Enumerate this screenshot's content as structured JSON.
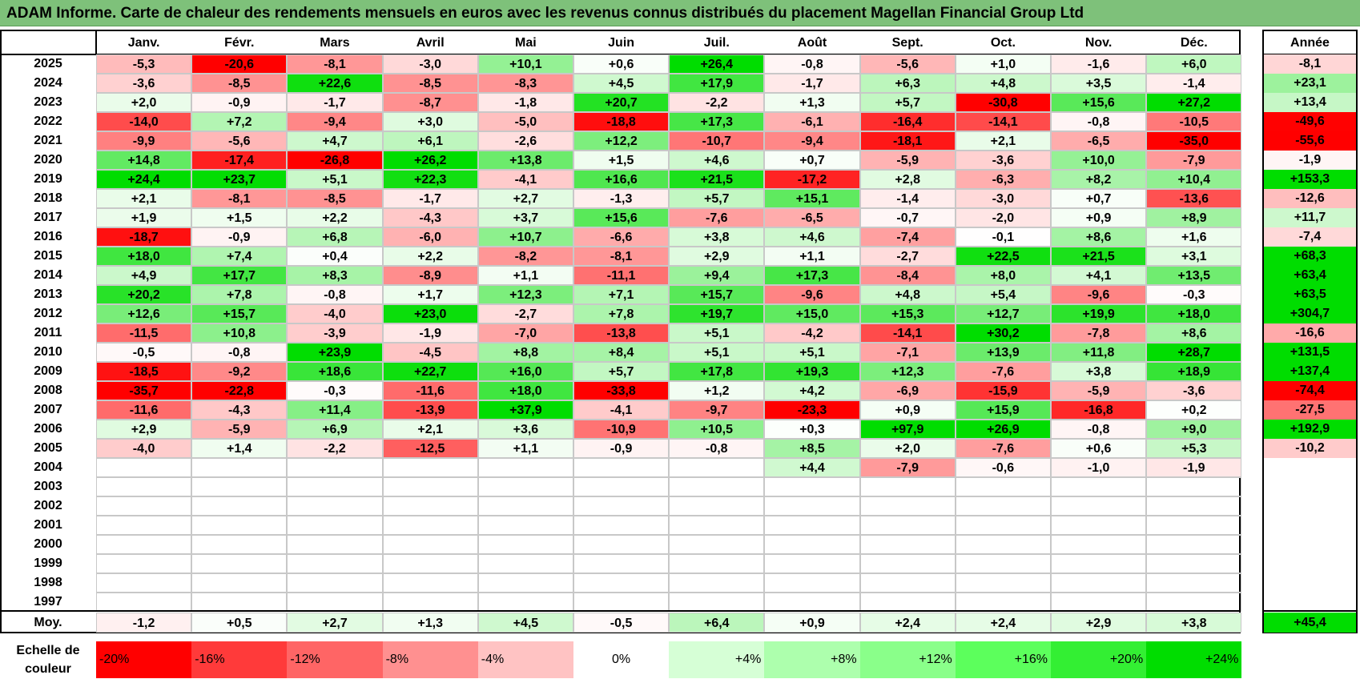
{
  "title": "ADAM Informe. Carte de chaleur des rendements mensuels en euros avec les revenus connus distribués du placement Magellan Financial Group Ltd",
  "chart_data": {
    "type": "heatmap",
    "months": [
      "Janv.",
      "Févr.",
      "Mars",
      "Avril",
      "Mai",
      "Juin",
      "Juil.",
      "Août",
      "Sept.",
      "Oct.",
      "Nov.",
      "Déc."
    ],
    "year_column_header": "Année",
    "rows": [
      {
        "year": "2025",
        "values": [
          -5.3,
          -20.6,
          -8.1,
          -3.0,
          10.1,
          0.6,
          26.4,
          -0.8,
          -5.6,
          1.0,
          -1.6,
          6.0
        ],
        "annual": -8.1
      },
      {
        "year": "2024",
        "values": [
          -3.6,
          -8.5,
          22.6,
          -8.5,
          -8.3,
          4.5,
          17.9,
          -1.7,
          6.3,
          4.8,
          3.5,
          -1.4
        ],
        "annual": 23.1
      },
      {
        "year": "2023",
        "values": [
          2.0,
          -0.9,
          -1.7,
          -8.7,
          -1.8,
          20.7,
          -2.2,
          1.3,
          5.7,
          -30.8,
          15.6,
          27.2
        ],
        "annual": 13.4
      },
      {
        "year": "2022",
        "values": [
          -14.0,
          7.2,
          -9.4,
          3.0,
          -5.0,
          -18.8,
          17.3,
          -6.1,
          -16.4,
          -14.1,
          -0.8,
          -10.5
        ],
        "annual": -49.6
      },
      {
        "year": "2021",
        "values": [
          -9.9,
          -5.6,
          4.7,
          6.1,
          -2.6,
          12.2,
          -10.7,
          -9.4,
          -18.1,
          2.1,
          -6.5,
          -35.0
        ],
        "annual": -55.6
      },
      {
        "year": "2020",
        "values": [
          14.8,
          -17.4,
          -26.8,
          26.2,
          13.8,
          1.5,
          4.6,
          0.7,
          -5.9,
          -3.6,
          10.0,
          -7.9
        ],
        "annual": -1.9
      },
      {
        "year": "2019",
        "values": [
          24.4,
          23.7,
          5.1,
          22.3,
          -4.1,
          16.6,
          21.5,
          -17.2,
          2.8,
          -6.3,
          8.2,
          10.4
        ],
        "annual": 153.3
      },
      {
        "year": "2018",
        "values": [
          2.1,
          -8.1,
          -8.5,
          -1.7,
          2.7,
          -1.3,
          5.7,
          15.1,
          -1.4,
          -3.0,
          0.7,
          -13.6
        ],
        "annual": -12.6
      },
      {
        "year": "2017",
        "values": [
          1.9,
          1.5,
          2.2,
          -4.3,
          3.7,
          15.6,
          -7.6,
          -6.5,
          -0.7,
          -2.0,
          0.9,
          8.9
        ],
        "annual": 11.7
      },
      {
        "year": "2016",
        "values": [
          -18.7,
          -0.9,
          6.8,
          -6.0,
          10.7,
          -6.6,
          3.8,
          4.6,
          -7.4,
          -0.1,
          8.6,
          1.6
        ],
        "annual": -7.4
      },
      {
        "year": "2015",
        "values": [
          18.0,
          7.4,
          0.4,
          2.2,
          -8.2,
          -8.1,
          2.9,
          1.1,
          -2.7,
          22.5,
          21.5,
          3.1
        ],
        "annual": 68.3
      },
      {
        "year": "2014",
        "values": [
          4.9,
          17.7,
          8.3,
          -8.9,
          1.1,
          -11.1,
          9.4,
          17.3,
          -8.4,
          8.0,
          4.1,
          13.5
        ],
        "annual": 63.4
      },
      {
        "year": "2013",
        "values": [
          20.2,
          7.8,
          -0.8,
          1.7,
          12.3,
          7.1,
          15.7,
          -9.6,
          4.8,
          5.4,
          -9.6,
          -0.3
        ],
        "annual": 63.5
      },
      {
        "year": "2012",
        "values": [
          12.6,
          15.7,
          -4.0,
          23.0,
          -2.7,
          7.8,
          19.7,
          15.0,
          15.3,
          12.7,
          19.9,
          18.0
        ],
        "annual": 304.7
      },
      {
        "year": "2011",
        "values": [
          -11.5,
          10.8,
          -3.9,
          -1.9,
          -7.0,
          -13.8,
          5.1,
          -4.2,
          -14.1,
          30.2,
          -7.8,
          8.6
        ],
        "annual": -16.6
      },
      {
        "year": "2010",
        "values": [
          -0.5,
          -0.8,
          23.9,
          -4.5,
          8.8,
          8.4,
          5.1,
          5.1,
          -7.1,
          13.9,
          11.8,
          28.7
        ],
        "annual": 131.5
      },
      {
        "year": "2009",
        "values": [
          -18.5,
          -9.2,
          18.6,
          22.7,
          16.0,
          5.7,
          17.8,
          19.3,
          12.3,
          -7.6,
          3.8,
          18.9
        ],
        "annual": 137.4
      },
      {
        "year": "2008",
        "values": [
          -35.7,
          -22.8,
          -0.3,
          -11.6,
          18.0,
          -33.8,
          1.2,
          4.2,
          -6.9,
          -15.9,
          -5.9,
          -3.6
        ],
        "annual": -74.4
      },
      {
        "year": "2007",
        "values": [
          -11.6,
          -4.3,
          11.4,
          -13.9,
          37.9,
          -4.1,
          -9.7,
          -23.3,
          0.9,
          15.9,
          -16.8,
          0.2
        ],
        "annual": -27.5
      },
      {
        "year": "2006",
        "values": [
          2.9,
          -5.9,
          6.9,
          2.1,
          3.6,
          -10.9,
          10.5,
          0.3,
          97.9,
          26.9,
          -0.8,
          9.0
        ],
        "annual": 192.9
      },
      {
        "year": "2005",
        "values": [
          -4.0,
          1.4,
          -2.2,
          -12.5,
          1.1,
          -0.9,
          -0.8,
          8.5,
          2.0,
          -7.6,
          0.6,
          5.3
        ],
        "annual": -10.2
      },
      {
        "year": "2004",
        "values": [
          null,
          null,
          null,
          null,
          null,
          null,
          null,
          4.4,
          -7.9,
          -0.6,
          -1.0,
          -1.9
        ],
        "annual": null
      },
      {
        "year": "2003",
        "values": [
          null,
          null,
          null,
          null,
          null,
          null,
          null,
          null,
          null,
          null,
          null,
          null
        ],
        "annual": null
      },
      {
        "year": "2002",
        "values": [
          null,
          null,
          null,
          null,
          null,
          null,
          null,
          null,
          null,
          null,
          null,
          null
        ],
        "annual": null
      },
      {
        "year": "2001",
        "values": [
          null,
          null,
          null,
          null,
          null,
          null,
          null,
          null,
          null,
          null,
          null,
          null
        ],
        "annual": null
      },
      {
        "year": "2000",
        "values": [
          null,
          null,
          null,
          null,
          null,
          null,
          null,
          null,
          null,
          null,
          null,
          null
        ],
        "annual": null
      },
      {
        "year": "1999",
        "values": [
          null,
          null,
          null,
          null,
          null,
          null,
          null,
          null,
          null,
          null,
          null,
          null
        ],
        "annual": null
      },
      {
        "year": "1998",
        "values": [
          null,
          null,
          null,
          null,
          null,
          null,
          null,
          null,
          null,
          null,
          null,
          null
        ],
        "annual": null
      },
      {
        "year": "1997",
        "values": [
          null,
          null,
          null,
          null,
          null,
          null,
          null,
          null,
          null,
          null,
          null,
          null
        ],
        "annual": null
      }
    ],
    "average": {
      "label": "Moy.",
      "values": [
        -1.2,
        0.5,
        2.7,
        1.3,
        4.5,
        -0.5,
        6.4,
        0.9,
        2.4,
        2.4,
        2.9,
        3.8
      ],
      "annual": 45.4
    },
    "color_scale": {
      "label_line1": "Echelle de",
      "label_line2": "couleur",
      "stops": [
        {
          "label": "-20%",
          "value": -20,
          "color": "#ff0000"
        },
        {
          "label": "-16%",
          "value": -16,
          "color": "#ff3a3a"
        },
        {
          "label": "-12%",
          "value": -12,
          "color": "#ff6565"
        },
        {
          "label": "-8%",
          "value": -8,
          "color": "#ff9090"
        },
        {
          "label": "-4%",
          "value": -4,
          "color": "#ffc3c3"
        },
        {
          "label": "0%",
          "value": 0,
          "color": "#ffffff"
        },
        {
          "label": "+4%",
          "value": 4,
          "color": "#d6ffd6"
        },
        {
          "label": "+8%",
          "value": 8,
          "color": "#adffad"
        },
        {
          "label": "+12%",
          "value": 12,
          "color": "#8aff8a"
        },
        {
          "label": "+16%",
          "value": 16,
          "color": "#5cff5c"
        },
        {
          "label": "+20%",
          "value": 20,
          "color": "#33ef33"
        },
        {
          "label": "+24%",
          "value": 24,
          "color": "#00dd00"
        }
      ]
    },
    "colors": {
      "negative_max": "#ff0000",
      "neutral": "#ffffff",
      "positive_max": "#00dd00"
    }
  }
}
